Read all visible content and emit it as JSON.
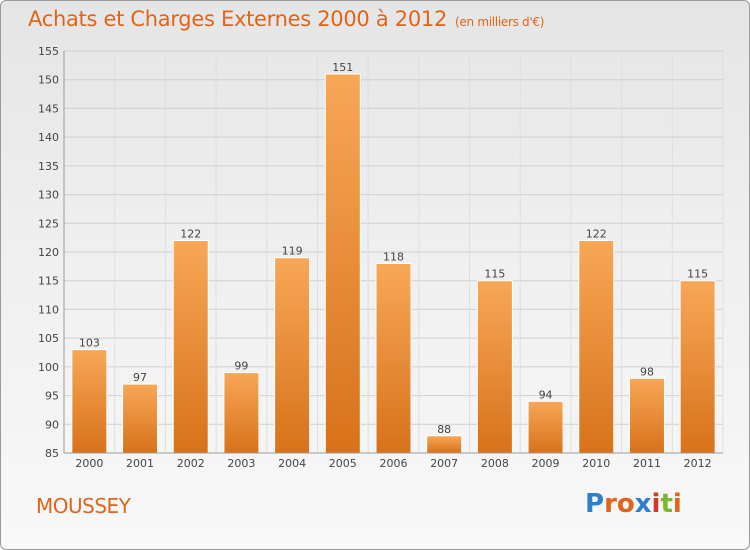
{
  "header": {
    "title": "Achats et Charges Externes 2000 à 2012",
    "subtitle": "(en milliers d'€)"
  },
  "footer": {
    "commune": "MOUSSEY",
    "logo_text": "Proxiti"
  },
  "colors": {
    "accent": "#e0641a",
    "bar_top": "#f7a757",
    "bar_bottom": "#d8721a"
  },
  "chart_data": {
    "type": "bar",
    "title": "Achats et Charges Externes 2000 à 2012",
    "subtitle": "(en milliers d'€)",
    "xlabel": "",
    "ylabel": "",
    "categories": [
      "2000",
      "2001",
      "2002",
      "2003",
      "2004",
      "2005",
      "2006",
      "2007",
      "2008",
      "2009",
      "2010",
      "2011",
      "2012"
    ],
    "values": [
      103,
      97,
      122,
      99,
      119,
      151,
      118,
      88,
      115,
      94,
      122,
      98,
      115
    ],
    "ylim": [
      85,
      155
    ],
    "yticks": [
      85,
      90,
      95,
      100,
      105,
      110,
      115,
      120,
      125,
      130,
      135,
      140,
      145,
      150,
      155
    ],
    "grid": true,
    "legend": "none"
  }
}
